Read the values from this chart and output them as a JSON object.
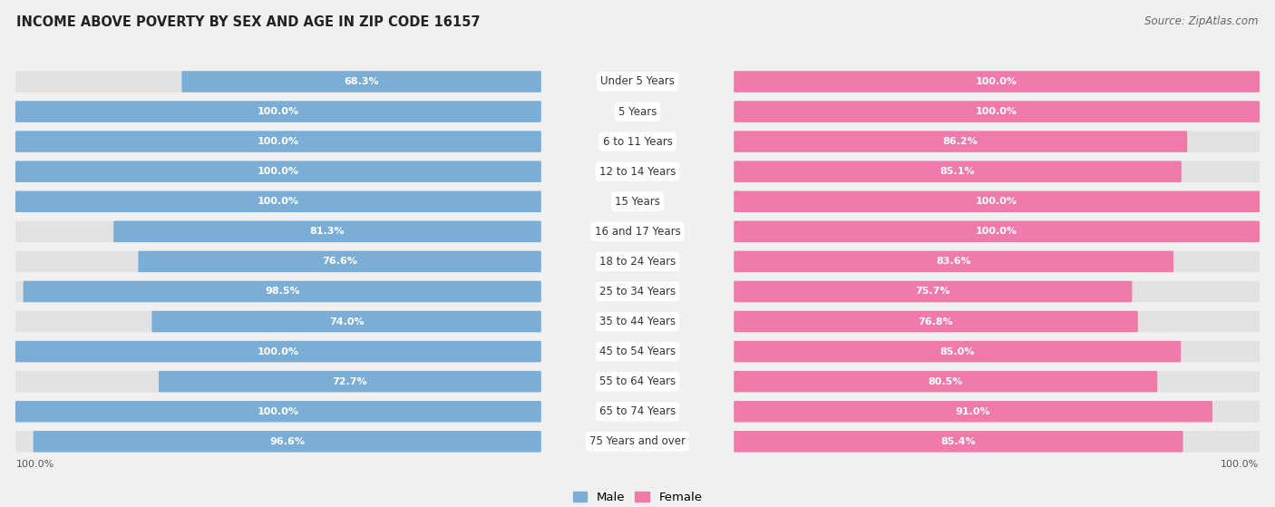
{
  "title": "INCOME ABOVE POVERTY BY SEX AND AGE IN ZIP CODE 16157",
  "source": "Source: ZipAtlas.com",
  "categories": [
    "Under 5 Years",
    "5 Years",
    "6 to 11 Years",
    "12 to 14 Years",
    "15 Years",
    "16 and 17 Years",
    "18 to 24 Years",
    "25 to 34 Years",
    "35 to 44 Years",
    "45 to 54 Years",
    "55 to 64 Years",
    "65 to 74 Years",
    "75 Years and over"
  ],
  "male_values": [
    68.3,
    100.0,
    100.0,
    100.0,
    100.0,
    81.3,
    76.6,
    98.5,
    74.0,
    100.0,
    72.7,
    100.0,
    96.6
  ],
  "female_values": [
    100.0,
    100.0,
    86.2,
    85.1,
    100.0,
    100.0,
    83.6,
    75.7,
    76.8,
    85.0,
    80.5,
    91.0,
    85.4
  ],
  "male_color": "#7aaed6",
  "female_color": "#f07aaa",
  "male_label": "Male",
  "female_label": "Female",
  "bg_color": "#f0f0f0",
  "row_bg_color": "#e2e2e2",
  "white_color": "#ffffff",
  "max_val": 100.0,
  "bar_height": 0.55,
  "title_fontsize": 10.5,
  "source_fontsize": 8.5,
  "cat_fontsize": 8.5,
  "val_fontsize": 8.0,
  "legend_fontsize": 9.5
}
